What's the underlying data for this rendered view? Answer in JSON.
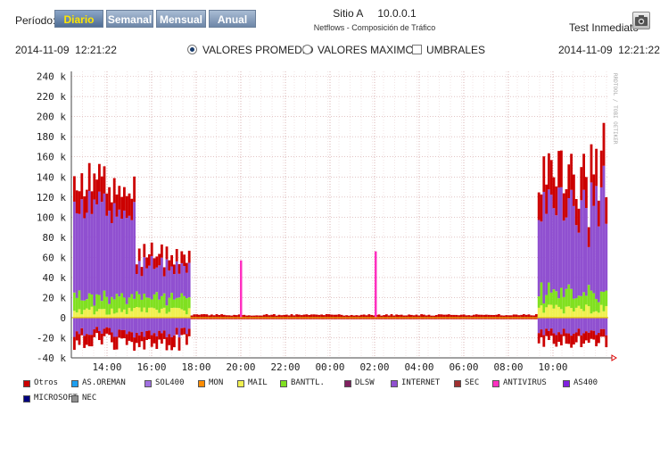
{
  "header": {
    "period_label": "Período:",
    "period_buttons": [
      {
        "label": "Diario",
        "active": true
      },
      {
        "label": "Semanal",
        "active": false
      },
      {
        "label": "Mensual",
        "active": false
      },
      {
        "label": "Anual",
        "active": false
      }
    ],
    "site": "Sitio A     10.0.0.1",
    "subtitle": "Netflows - Composición de Tráfico",
    "test_label": "Test Inmediato",
    "test_icon": "camera-icon"
  },
  "dates": {
    "left": "2014-11-09  12:21:22",
    "right": "2014-11-09  12:21:22"
  },
  "options": {
    "avg": {
      "label": "VALORES PROMEDIO",
      "selected": true
    },
    "max": {
      "label": "VALORES MAXIMOS",
      "selected": false
    },
    "thr": {
      "label": "UMBRALES",
      "checked": false
    }
  },
  "chart_data": {
    "type": "area",
    "y_ticks": [
      "240 k",
      "220 k",
      "200 k",
      "180 k",
      "160 k",
      "140 k",
      "120 k",
      "100 k",
      "80 k",
      "60 k",
      "40 k",
      "20 k",
      "0",
      "-20 k",
      "-40 k"
    ],
    "ylim": [
      -40000,
      245000
    ],
    "x_ticks": [
      "14:00",
      "16:00",
      "18:00",
      "20:00",
      "22:00",
      "00:00",
      "02:00",
      "04:00",
      "06:00",
      "08:00",
      "10:00"
    ],
    "watermark": "RRDTOOL / TOBI OETIKER",
    "grid": true,
    "series": [
      {
        "name": "Otros",
        "color": "#cc0000"
      },
      {
        "name": "AS.OREMAN",
        "color": "#1e9ff0"
      },
      {
        "name": "SOL400",
        "color": "#a070e0"
      },
      {
        "name": "MON",
        "color": "#ff8c00"
      },
      {
        "name": "MAIL",
        "color": "#f0f050"
      },
      {
        "name": "BANTTL.",
        "color": "#80e020"
      },
      {
        "name": "DLSW",
        "color": "#802060"
      },
      {
        "name": "INTERNET",
        "color": "#9050d0"
      },
      {
        "name": "SEC",
        "color": "#a03030"
      },
      {
        "name": "ANTIVIRUS",
        "color": "#ff30c0"
      },
      {
        "name": "AS400",
        "color": "#8020e0"
      },
      {
        "name": "MICROSOFT",
        "color": "#000080"
      },
      {
        "name": "NEC",
        "color": "#909090"
      }
    ]
  }
}
